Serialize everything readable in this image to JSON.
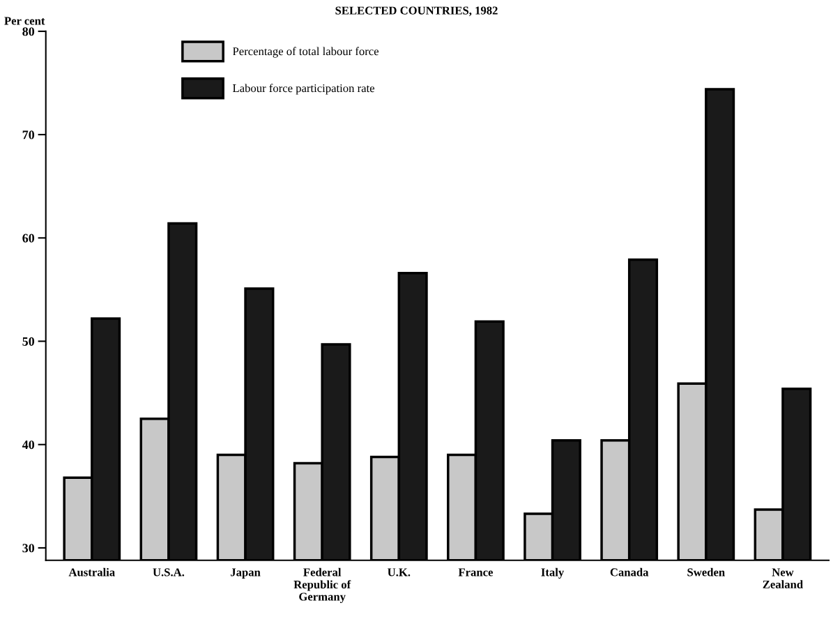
{
  "chart_data": {
    "type": "bar",
    "title": "SELECTED COUNTRIES, 1982",
    "ylabel": "Per cent",
    "categories": [
      "Australia",
      "U.S.A.",
      "Japan",
      "Federal\nRepublic of\nGermany",
      "U.K.",
      "France",
      "Italy",
      "Canada",
      "Sweden",
      "New\nZealand"
    ],
    "series": [
      {
        "name": "Percentage of total labour force",
        "color": "#c8c8c8",
        "values": [
          36.8,
          42.5,
          39.0,
          38.2,
          38.8,
          39.0,
          33.3,
          40.4,
          45.9,
          33.7
        ]
      },
      {
        "name": "Labour force participation rate",
        "color": "#1a1a1a",
        "values": [
          52.2,
          61.4,
          55.1,
          49.7,
          56.6,
          51.9,
          40.4,
          57.9,
          74.4,
          45.4
        ]
      }
    ],
    "ylim": [
      28.8,
      80
    ],
    "yticks": [
      30,
      40,
      50,
      60,
      70,
      80
    ],
    "grid": false,
    "legend": "top"
  }
}
